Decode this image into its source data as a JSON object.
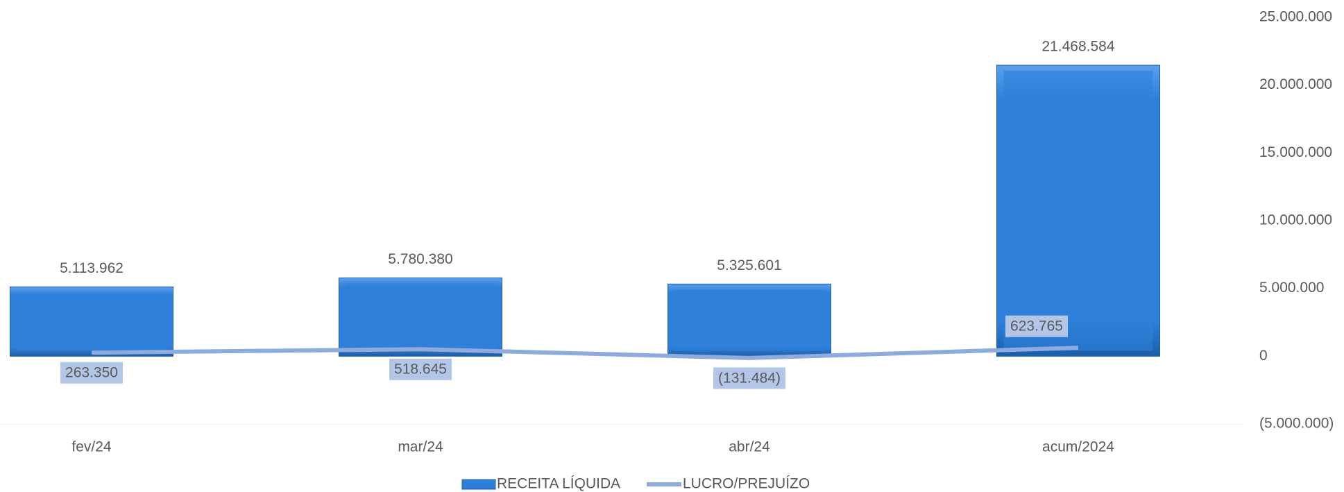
{
  "chart_data": {
    "type": "bar",
    "categories": [
      "fev/24",
      "mar/24",
      "abr/24",
      "acum/2024"
    ],
    "series": [
      {
        "name": "RECEITA LÍQUIDA",
        "type": "bar",
        "color": "#2e7fd9",
        "values": [
          5113962,
          5780380,
          5325601,
          21468584
        ],
        "value_labels": [
          "5.113.962",
          "5.780.380",
          "5.325.601",
          "21.468.584"
        ]
      },
      {
        "name": "LUCRO/PREJUÍZO",
        "type": "line",
        "color": "#8faadc",
        "values": [
          263350,
          518645,
          -131484,
          623765
        ],
        "value_labels": [
          "263.350",
          "518.645",
          "(131.484)",
          "623.765"
        ]
      }
    ],
    "ylim": [
      -5000000,
      25000000
    ],
    "yticks": [
      {
        "value": 25000000,
        "label": "25.000.000"
      },
      {
        "value": 20000000,
        "label": "20.000.000"
      },
      {
        "value": 15000000,
        "label": "15.000.000"
      },
      {
        "value": 10000000,
        "label": "10.000.000"
      },
      {
        "value": 5000000,
        "label": "5.000.000"
      },
      {
        "value": 0,
        "label": "0"
      },
      {
        "value": -5000000,
        "label": "(5.000.000)"
      }
    ],
    "legend": "bottom"
  }
}
